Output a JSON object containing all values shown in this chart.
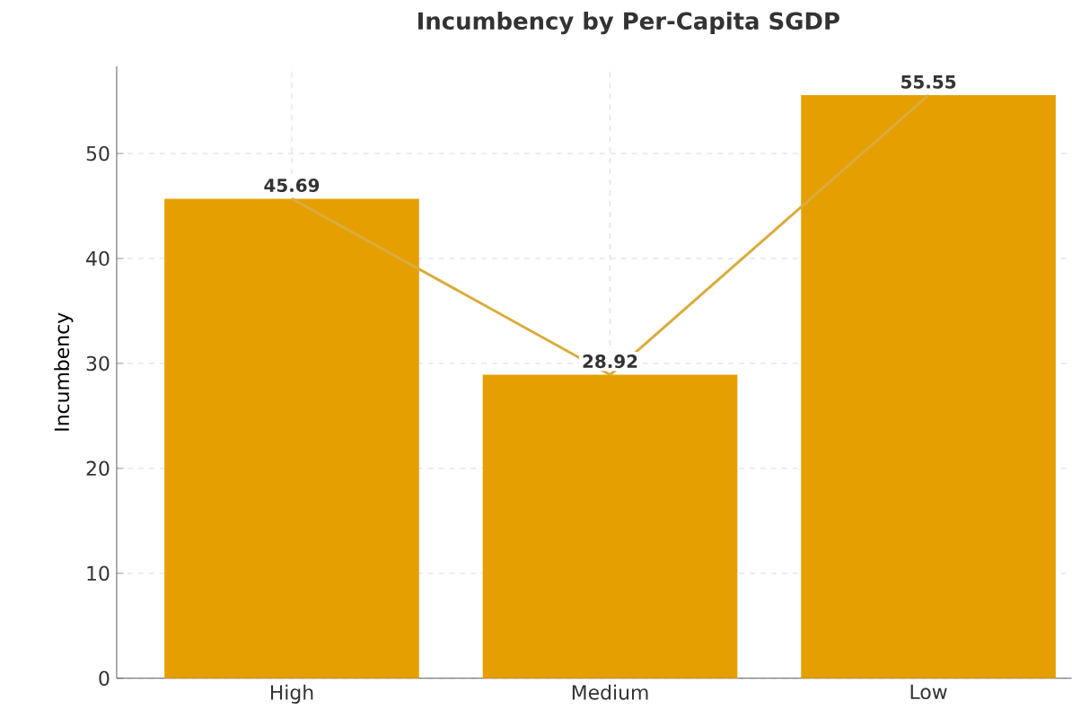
{
  "chart_data": {
    "type": "bar",
    "title": "Incumbency by Per-Capita SGDP",
    "ylabel": "Incumbency",
    "categories": [
      "High",
      "Medium",
      "Low"
    ],
    "series": [
      {
        "color": "#e69f00",
        "values": [
          45.69,
          28.92,
          55.55
        ],
        "value_labels": [
          "45.69",
          "28.92",
          "55.55"
        ]
      },
      {
        "type": "line",
        "color": "#d9ac3c",
        "values": [
          45.69,
          28.92,
          55.55
        ]
      }
    ],
    "ylim": [
      0,
      58.3
    ],
    "yticks": [
      0,
      10,
      20,
      30,
      40,
      50
    ],
    "grid": true
  }
}
